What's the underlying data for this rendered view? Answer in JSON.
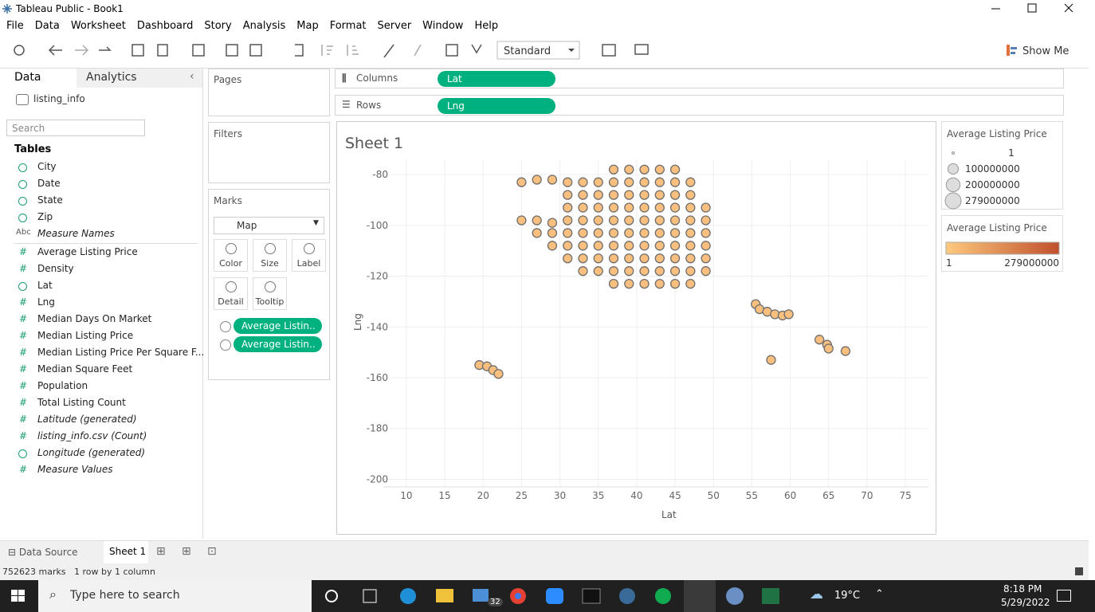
{
  "window": {
    "title": "Tableau Public - Book1"
  },
  "menu": [
    "File",
    "Data",
    "Worksheet",
    "Dashboard",
    "Story",
    "Analysis",
    "Map",
    "Format",
    "Server",
    "Window",
    "Help"
  ],
  "toolbar": {
    "fit": "Standard",
    "show_me": "Show Me"
  },
  "data_pane": {
    "tabs": [
      "Data",
      "Analytics"
    ],
    "source": "listing_info",
    "search": "Search",
    "tables_heading": "Tables",
    "fields": [
      {
        "name": "City"
      },
      {
        "name": "Date"
      },
      {
        "name": "State"
      },
      {
        "name": "Zip"
      },
      {
        "name": "Measure Names",
        "badge": "Abc",
        "italic": true
      },
      {
        "name": "Average Listing Price",
        "badge": "#"
      },
      {
        "name": "Density",
        "badge": "#"
      },
      {
        "name": "Lat"
      },
      {
        "name": "Lng",
        "badge": "#"
      },
      {
        "name": "Median Days On Market",
        "badge": "#"
      },
      {
        "name": "Median Listing Price",
        "badge": "#"
      },
      {
        "name": "Median Listing Price Per Square F...",
        "badge": "#"
      },
      {
        "name": "Median Square Feet",
        "badge": "#"
      },
      {
        "name": "Population",
        "badge": "#"
      },
      {
        "name": "Total Listing Count",
        "badge": "#"
      },
      {
        "name": "Latitude (generated)",
        "badge": "#",
        "italic": true
      },
      {
        "name": "listing_info.csv (Count)",
        "badge": "#",
        "italic": true
      },
      {
        "name": "Longitude (generated)",
        "italic": true
      },
      {
        "name": "Measure Values",
        "badge": "#",
        "italic": true
      }
    ]
  },
  "shelves": {
    "pages": "Pages",
    "filters": "Filters",
    "columns": "Columns",
    "rows": "Rows",
    "columns_pill": "Lat",
    "rows_pill": "Lng"
  },
  "marks": {
    "title": "Marks",
    "type": "Map",
    "buttons": [
      "Color",
      "Size",
      "Label",
      "Detail",
      "Tooltip"
    ],
    "pills": [
      "Average Listin..",
      "Average Listin.."
    ]
  },
  "legends": [
    {
      "title": "Average Listing Price",
      "items": [
        1,
        100000000,
        200000000,
        279000000
      ]
    },
    {
      "title": "Average Listing Price",
      "min": 1,
      "max": 279000000,
      "colors": [
        "#fdc97e",
        "#c0502c"
      ]
    }
  ],
  "chart_data": {
    "type": "scatter",
    "title": "Sheet 1",
    "x_label": "Lat",
    "y_label": "Lng",
    "color": "#f8bf7e",
    "stroke": "#6e6e6e",
    "grid": true,
    "xlim": [
      7,
      78
    ],
    "ylim": [
      -203,
      -74
    ],
    "xticks": [
      10,
      15,
      20,
      25,
      30,
      35,
      40,
      45,
      50,
      55,
      60,
      65,
      70,
      75
    ],
    "yticks": [
      -80,
      -100,
      -120,
      -140,
      -160,
      -180,
      -200
    ],
    "x": [
      37,
      39,
      41,
      43,
      45,
      25,
      27,
      29,
      31,
      33,
      35,
      37,
      39,
      41,
      43,
      45,
      47,
      31,
      33,
      35,
      37,
      39,
      41,
      43,
      45,
      47,
      31,
      33,
      35,
      37,
      39,
      41,
      43,
      45,
      47,
      49,
      25,
      27,
      29,
      31,
      33,
      35,
      37,
      39,
      41,
      43,
      45,
      47,
      49,
      27,
      29,
      31,
      33,
      35,
      37,
      39,
      41,
      43,
      45,
      47,
      49,
      29,
      31,
      33,
      35,
      37,
      39,
      41,
      43,
      45,
      47,
      49,
      31,
      33,
      35,
      37,
      39,
      41,
      43,
      45,
      47,
      49,
      33,
      35,
      37,
      39,
      41,
      43,
      45,
      47,
      49,
      37,
      39,
      41,
      43,
      45,
      47,
      19.5,
      20.5,
      21.3,
      22,
      55.5,
      56,
      57,
      58,
      59,
      59.8,
      57.5,
      63.8,
      64.8,
      65,
      67.2
    ],
    "values": [
      -78,
      -78,
      -78,
      -78,
      -78,
      -83,
      -82,
      -82,
      -83,
      -83,
      -83,
      -83,
      -83,
      -83,
      -83,
      -83,
      -83,
      -88,
      -88,
      -88,
      -88,
      -88,
      -88,
      -88,
      -88,
      -88,
      -93,
      -93,
      -93,
      -93,
      -93,
      -93,
      -93,
      -93,
      -93,
      -93,
      -98,
      -98,
      -99,
      -98,
      -98,
      -98,
      -98,
      -98,
      -98,
      -98,
      -98,
      -98,
      -98,
      -103,
      -103,
      -103,
      -103,
      -103,
      -103,
      -103,
      -103,
      -103,
      -103,
      -103,
      -103,
      -108,
      -108,
      -108,
      -108,
      -108,
      -108,
      -108,
      -108,
      -108,
      -108,
      -108,
      -113,
      -113,
      -113,
      -113,
      -113,
      -113,
      -113,
      -113,
      -113,
      -113,
      -118,
      -118,
      -118,
      -118,
      -118,
      -118,
      -118,
      -118,
      -118,
      -123,
      -123,
      -123,
      -123,
      -123,
      -123,
      -155,
      -155.5,
      -157,
      -158.5,
      -131,
      -133,
      -134,
      -135,
      -135.5,
      -135,
      -153,
      -145,
      -147,
      -148.5,
      -149.5
    ]
  },
  "tabs": {
    "data_source": "Data Source",
    "sheet": "Sheet 1"
  },
  "status": {
    "marks": "752623 marks",
    "layout": "1 row by 1 column"
  },
  "taskbar": {
    "search": "Type here to search",
    "mail_badge": "32",
    "weather": "19°C",
    "time": "8:18 PM",
    "date": "5/29/2022"
  }
}
